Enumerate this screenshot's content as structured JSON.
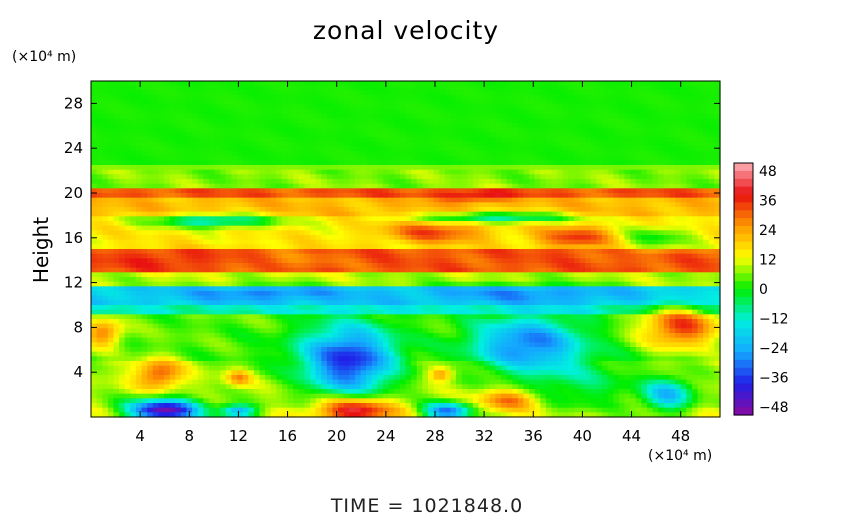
{
  "chart_data": {
    "type": "heatmap",
    "title": "zonal velocity",
    "ylabel": "Height",
    "xunit": "(×10⁴ m)",
    "yunit": "(×10⁴ m)",
    "footer": "TIME  =  1021848.0",
    "x_ticks": [
      "4",
      "8",
      "12",
      "16",
      "20",
      "24",
      "28",
      "32",
      "36",
      "40",
      "44",
      "48"
    ],
    "y_ticks": [
      "4",
      "8",
      "12",
      "16",
      "20",
      "24",
      "28"
    ],
    "xlim": [
      0,
      51.2
    ],
    "ylim": [
      0,
      30
    ],
    "colorbar": {
      "ticks": [
        "48",
        "36",
        "24",
        "12",
        "0",
        "−12",
        "−24",
        "−36",
        "−48"
      ],
      "range": [
        -48,
        48
      ],
      "colors": [
        "#8a0aa0",
        "#2020e8",
        "#14a8ff",
        "#00f0e0",
        "#00ee00",
        "#ffff00",
        "#ff9800",
        "#e81010",
        "#ffb0b8"
      ]
    },
    "layers": [
      {
        "y": [
          0,
          1
        ],
        "u": 10
      },
      {
        "y": [
          1,
          5
        ],
        "u": 8
      },
      {
        "y": [
          5,
          9
        ],
        "u": 4
      },
      {
        "y": [
          9,
          10
        ],
        "u": -10
      },
      {
        "y": [
          10,
          11.5
        ],
        "u": -18
      },
      {
        "y": [
          11.5,
          13
        ],
        "u": 8
      },
      {
        "y": [
          13,
          14.8
        ],
        "u": 30
      },
      {
        "y": [
          14.8,
          18
        ],
        "u": 14
      },
      {
        "y": [
          18,
          19.5
        ],
        "u": 20
      },
      {
        "y": [
          19.5,
          20.5
        ],
        "u": 30
      },
      {
        "y": [
          20.5,
          22.5
        ],
        "u": 6
      },
      {
        "y": [
          22.5,
          30
        ],
        "u": 1
      }
    ],
    "blobs": [
      {
        "x": 21,
        "y": 5,
        "rx": 3.8,
        "ry": 3.2,
        "u": -38
      },
      {
        "x": 35.5,
        "y": 6.5,
        "rx": 4.5,
        "ry": 2.5,
        "u": -30
      },
      {
        "x": 6,
        "y": 0.6,
        "rx": 3,
        "ry": 1,
        "u": -48
      },
      {
        "x": 29,
        "y": 0.5,
        "rx": 2,
        "ry": 0.8,
        "u": -30
      },
      {
        "x": 47,
        "y": 2,
        "rx": 2,
        "ry": 1.5,
        "u": -20
      },
      {
        "x": 12,
        "y": 0.5,
        "rx": 1.5,
        "ry": 0.6,
        "u": -24
      },
      {
        "x": 21.5,
        "y": 0.6,
        "rx": 3.2,
        "ry": 1.2,
        "u": 46
      },
      {
        "x": 34,
        "y": 1.5,
        "rx": 2.5,
        "ry": 1,
        "u": 30
      },
      {
        "x": 5.5,
        "y": 3.8,
        "rx": 1.8,
        "ry": 1.3,
        "u": 32
      },
      {
        "x": 48,
        "y": 8,
        "rx": 3,
        "ry": 1.8,
        "u": 34
      },
      {
        "x": 1,
        "y": 7.5,
        "rx": 1.5,
        "ry": 1.2,
        "u": 28
      },
      {
        "x": 28.5,
        "y": 3.8,
        "rx": 1,
        "ry": 0.6,
        "u": 26
      },
      {
        "x": 12,
        "y": 3.5,
        "rx": 1,
        "ry": 0.7,
        "u": 26
      },
      {
        "x": 31,
        "y": 19.7,
        "rx": 3,
        "ry": 0.5,
        "u": 38
      },
      {
        "x": 28,
        "y": 16.5,
        "rx": 4,
        "ry": 1,
        "u": 32
      },
      {
        "x": 39.5,
        "y": 16,
        "rx": 3,
        "ry": 1,
        "u": 34
      },
      {
        "x": 6,
        "y": 14,
        "rx": 5,
        "ry": 0.8,
        "u": 34
      },
      {
        "x": 16,
        "y": 14,
        "rx": 4,
        "ry": 0.9,
        "u": 26
      },
      {
        "x": 14,
        "y": 11,
        "rx": 6,
        "ry": 0.6,
        "u": -28
      },
      {
        "x": 35,
        "y": 11,
        "rx": 8,
        "ry": 0.7,
        "u": -26
      },
      {
        "x": 10,
        "y": 17.5,
        "rx": 5,
        "ry": 0.6,
        "u": -14
      },
      {
        "x": 33,
        "y": 17.8,
        "rx": 6,
        "ry": 0.5,
        "u": -12
      },
      {
        "x": 46,
        "y": 16,
        "rx": 3,
        "ry": 1,
        "u": 0
      },
      {
        "x": 40,
        "y": 3,
        "rx": 5,
        "ry": 2.5,
        "u": -4
      },
      {
        "x": 14,
        "y": 6,
        "rx": 4,
        "ry": 2,
        "u": 2
      }
    ]
  }
}
